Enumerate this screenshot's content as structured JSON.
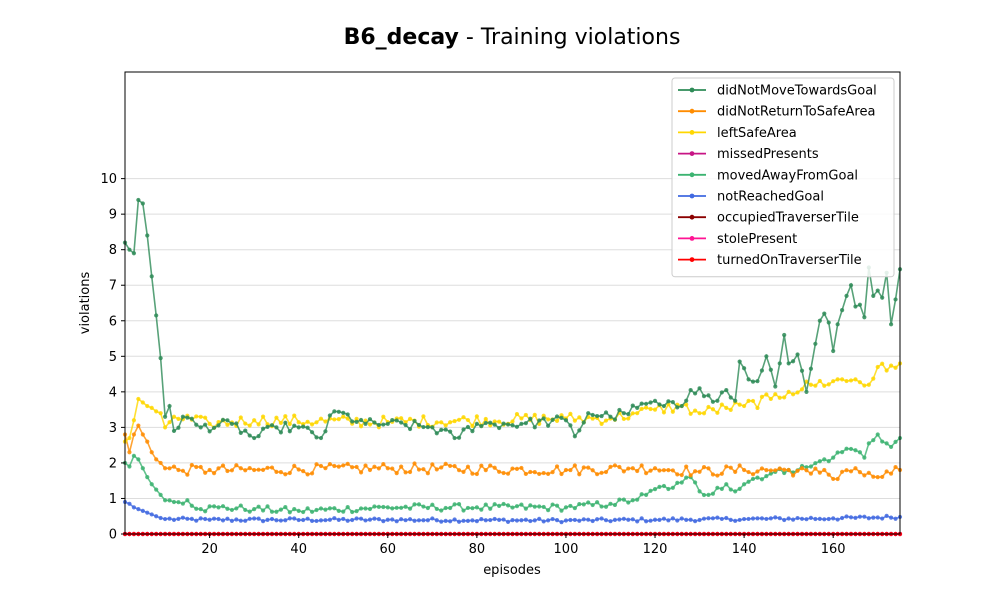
{
  "chart_data": {
    "type": "line",
    "title_bold": "B6_decay",
    "title_rest": " - Training violations",
    "xlabel": "episodes",
    "ylabel": "violations",
    "xlim": [
      1,
      175
    ],
    "ylim": [
      0,
      13
    ],
    "xticks": [
      20,
      40,
      60,
      80,
      100,
      120,
      140,
      160
    ],
    "yticks": [
      0,
      1,
      2,
      3,
      4,
      5,
      6,
      7,
      8,
      9,
      10
    ],
    "grid": "horizontal",
    "legend_position": "top-right",
    "anchors": {
      "didNotMoveTowardsGoal": [
        [
          1,
          8.2
        ],
        [
          2,
          8.0
        ],
        [
          3,
          7.9
        ],
        [
          4,
          9.4
        ],
        [
          5,
          9.3
        ],
        [
          6,
          8.4
        ],
        [
          7,
          7.25
        ],
        [
          8,
          6.15
        ],
        [
          9,
          4.95
        ],
        [
          10,
          3.3
        ],
        [
          11,
          3.6
        ],
        [
          12,
          2.9
        ],
        [
          14,
          3.3
        ],
        [
          18,
          3.0
        ],
        [
          25,
          3.1
        ],
        [
          30,
          2.7
        ],
        [
          35,
          3.0
        ],
        [
          40,
          3.0
        ],
        [
          45,
          2.7
        ],
        [
          48,
          3.45
        ],
        [
          55,
          3.1
        ],
        [
          60,
          3.1
        ],
        [
          70,
          3.0
        ],
        [
          75,
          2.7
        ],
        [
          80,
          3.1
        ],
        [
          90,
          3.1
        ],
        [
          100,
          3.2
        ],
        [
          102,
          2.75
        ],
        [
          105,
          3.4
        ],
        [
          110,
          3.3
        ],
        [
          113,
          3.4
        ],
        [
          116,
          3.55
        ],
        [
          119,
          3.7
        ],
        [
          122,
          3.6
        ],
        [
          126,
          3.6
        ],
        [
          128,
          4.05
        ],
        [
          130,
          4.1
        ],
        [
          132,
          3.9
        ],
        [
          134,
          3.75
        ],
        [
          136,
          4.05
        ],
        [
          138,
          3.75
        ],
        [
          139,
          4.85
        ],
        [
          141,
          4.35
        ],
        [
          143,
          4.3
        ],
        [
          144,
          4.6
        ],
        [
          145,
          5.0
        ],
        [
          147,
          4.15
        ],
        [
          148,
          4.8
        ],
        [
          149,
          5.6
        ],
        [
          150,
          4.8
        ],
        [
          152,
          5.05
        ],
        [
          154,
          4.0
        ],
        [
          155,
          4.65
        ],
        [
          157,
          6.0
        ],
        [
          158,
          6.2
        ],
        [
          159,
          5.95
        ],
        [
          160,
          5.15
        ],
        [
          161,
          5.9
        ],
        [
          162,
          6.3
        ],
        [
          163,
          6.7
        ],
        [
          164,
          7.0
        ],
        [
          165,
          6.4
        ],
        [
          166,
          6.45
        ],
        [
          167,
          6.1
        ],
        [
          168,
          7.5
        ],
        [
          169,
          6.7
        ],
        [
          170,
          6.85
        ],
        [
          171,
          6.65
        ],
        [
          172,
          7.35
        ],
        [
          173,
          5.9
        ],
        [
          174,
          6.6
        ],
        [
          175,
          7.45
        ]
      ],
      "didNotReturnToSafeArea": [
        [
          1,
          2.8
        ],
        [
          2,
          2.3
        ],
        [
          3,
          2.8
        ],
        [
          4,
          3.05
        ],
        [
          5,
          2.8
        ],
        [
          6,
          2.6
        ],
        [
          7,
          2.3
        ],
        [
          8,
          2.1
        ],
        [
          9,
          2.0
        ],
        [
          10,
          1.85
        ],
        [
          13,
          1.8
        ],
        [
          20,
          1.8
        ],
        [
          30,
          1.8
        ],
        [
          60,
          1.85
        ],
        [
          100,
          1.8
        ],
        [
          115,
          1.85
        ],
        [
          120,
          1.85
        ],
        [
          130,
          1.75
        ],
        [
          140,
          1.8
        ],
        [
          150,
          1.8
        ],
        [
          155,
          1.7
        ],
        [
          158,
          1.8
        ],
        [
          160,
          1.55
        ],
        [
          162,
          1.75
        ],
        [
          165,
          1.85
        ],
        [
          167,
          1.65
        ],
        [
          170,
          1.6
        ],
        [
          173,
          1.7
        ],
        [
          175,
          1.8
        ]
      ],
      "leftSafeArea": [
        [
          1,
          2.6
        ],
        [
          2,
          2.7
        ],
        [
          3,
          3.2
        ],
        [
          4,
          3.8
        ],
        [
          5,
          3.7
        ],
        [
          6,
          3.6
        ],
        [
          7,
          3.55
        ],
        [
          8,
          3.45
        ],
        [
          9,
          3.4
        ],
        [
          10,
          3.0
        ],
        [
          12,
          3.3
        ],
        [
          20,
          3.1
        ],
        [
          30,
          3.2
        ],
        [
          60,
          3.15
        ],
        [
          100,
          3.25
        ],
        [
          110,
          3.25
        ],
        [
          116,
          3.4
        ],
        [
          120,
          3.5
        ],
        [
          126,
          3.6
        ],
        [
          130,
          3.4
        ],
        [
          136,
          3.55
        ],
        [
          140,
          3.6
        ],
        [
          146,
          3.8
        ],
        [
          150,
          4.0
        ],
        [
          155,
          4.2
        ],
        [
          160,
          4.3
        ],
        [
          165,
          4.35
        ],
        [
          168,
          4.2
        ],
        [
          170,
          4.7
        ],
        [
          172,
          4.6
        ],
        [
          175,
          4.8
        ]
      ],
      "movedAwayFromGoal": [
        [
          1,
          2.0
        ],
        [
          2,
          1.9
        ],
        [
          3,
          2.2
        ],
        [
          4,
          2.1
        ],
        [
          5,
          1.85
        ],
        [
          6,
          1.6
        ],
        [
          7,
          1.4
        ],
        [
          8,
          1.25
        ],
        [
          9,
          1.1
        ],
        [
          10,
          0.95
        ],
        [
          12,
          0.9
        ],
        [
          15,
          0.95
        ],
        [
          18,
          0.7
        ],
        [
          22,
          0.75
        ],
        [
          30,
          0.7
        ],
        [
          40,
          0.65
        ],
        [
          60,
          0.75
        ],
        [
          80,
          0.75
        ],
        [
          100,
          0.75
        ],
        [
          110,
          0.85
        ],
        [
          115,
          0.95
        ],
        [
          118,
          1.1
        ],
        [
          122,
          1.35
        ],
        [
          124,
          1.3
        ],
        [
          126,
          1.45
        ],
        [
          128,
          1.6
        ],
        [
          130,
          1.2
        ],
        [
          132,
          1.1
        ],
        [
          134,
          1.3
        ],
        [
          136,
          1.4
        ],
        [
          138,
          1.2
        ],
        [
          140,
          1.4
        ],
        [
          142,
          1.55
        ],
        [
          146,
          1.7
        ],
        [
          150,
          1.8
        ],
        [
          155,
          1.9
        ],
        [
          158,
          2.1
        ],
        [
          160,
          2.15
        ],
        [
          163,
          2.4
        ],
        [
          166,
          2.3
        ],
        [
          167,
          2.15
        ],
        [
          168,
          2.55
        ],
        [
          170,
          2.8
        ],
        [
          172,
          2.55
        ],
        [
          173,
          2.45
        ],
        [
          175,
          2.7
        ]
      ],
      "notReachedGoal": [
        [
          1,
          0.9
        ],
        [
          2,
          0.85
        ],
        [
          3,
          0.75
        ],
        [
          4,
          0.7
        ],
        [
          5,
          0.65
        ],
        [
          6,
          0.6
        ],
        [
          7,
          0.55
        ],
        [
          8,
          0.5
        ],
        [
          9,
          0.45
        ],
        [
          10,
          0.42
        ],
        [
          20,
          0.4
        ],
        [
          60,
          0.4
        ],
        [
          100,
          0.38
        ],
        [
          120,
          0.4
        ],
        [
          140,
          0.42
        ],
        [
          160,
          0.44
        ],
        [
          175,
          0.48
        ]
      ]
    },
    "series": [
      {
        "name": "didNotMoveTowardsGoal",
        "color": "#2e8b57",
        "jitter": 0.09
      },
      {
        "name": "didNotReturnToSafeArea",
        "color": "#ff8c00",
        "jitter": 0.09
      },
      {
        "name": "leftSafeArea",
        "color": "#ffd700",
        "jitter": 0.1
      },
      {
        "name": "missedPresents",
        "color": "#c71585",
        "constant": 0
      },
      {
        "name": "movedAwayFromGoal",
        "color": "#3cb371",
        "jitter": 0.06
      },
      {
        "name": "notReachedGoal",
        "color": "#4169e1",
        "jitter": 0.03
      },
      {
        "name": "occupiedTraverserTile",
        "color": "#8b0000",
        "constant": 0
      },
      {
        "name": "stolePresent",
        "color": "#ff1493",
        "constant": 0
      },
      {
        "name": "turnedOnTraverserTile",
        "color": "#ff0000",
        "constant": 0
      }
    ]
  }
}
